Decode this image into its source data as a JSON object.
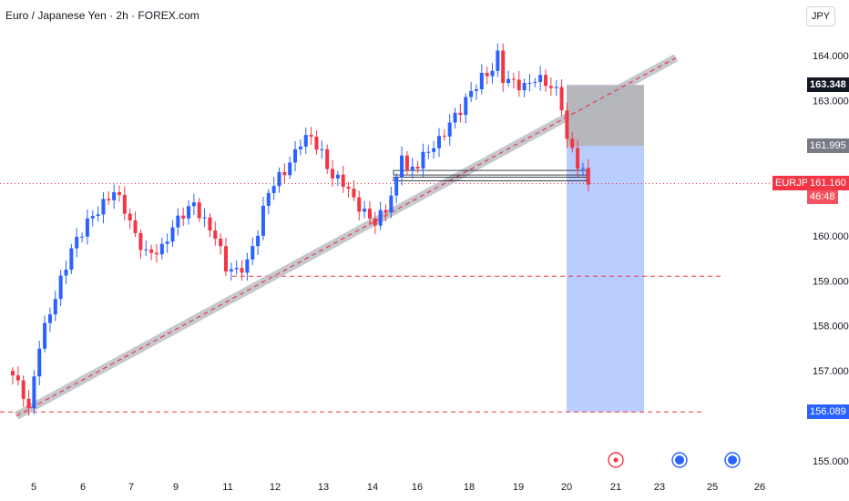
{
  "header": {
    "title": "Euro / Japanese Yen · 2h · FOREX.com",
    "currency_button": "JPY"
  },
  "colors": {
    "up": "#2962ff",
    "down": "#f23645",
    "trendline": "#f23645",
    "channel": "#b2b5be",
    "stop_zone": "#787b86",
    "target_zone": "#2962ff",
    "current_price": "#f23645"
  },
  "price_labels": {
    "stop": "163.348",
    "entry": "161.995",
    "current_symbol": "EURJPY",
    "current_price": "161.160",
    "countdown": "46:48",
    "target": "156.089"
  },
  "event_markers": [
    {
      "type": "economic-event",
      "color": "#f23645"
    },
    {
      "type": "economic-event",
      "color": "#2962ff"
    },
    {
      "type": "economic-event",
      "color": "#2962ff"
    }
  ],
  "chart_data": {
    "type": "candlestick",
    "symbol": "EURJPY",
    "timeframe": "2h",
    "source": "FOREX.com",
    "y_axis": {
      "range": [
        154.7,
        165.0
      ],
      "ticks": [
        "164.000",
        "163.000",
        "160.000",
        "159.000",
        "158.000",
        "157.000",
        "155.000"
      ]
    },
    "x_axis": {
      "ticks": [
        "5",
        "6",
        "7",
        "9",
        "11",
        "12",
        "13",
        "14",
        "16",
        "18",
        "19",
        "20",
        "21",
        "23",
        "25",
        "26"
      ]
    },
    "close_path": [
      [
        0,
        156.9
      ],
      [
        2,
        156.5
      ],
      [
        3,
        156.1
      ],
      [
        5,
        157.6
      ],
      [
        7,
        158.3
      ],
      [
        9,
        159.0
      ],
      [
        11,
        159.7
      ],
      [
        14,
        160.3
      ],
      [
        17,
        160.7
      ],
      [
        19,
        161.0
      ],
      [
        21,
        160.6
      ],
      [
        23,
        160.0
      ],
      [
        25,
        159.6
      ],
      [
        28,
        159.7
      ],
      [
        30,
        160.2
      ],
      [
        32,
        160.5
      ],
      [
        34,
        160.7
      ],
      [
        36,
        160.3
      ],
      [
        38,
        160.0
      ],
      [
        40,
        159.3
      ],
      [
        42,
        159.2
      ],
      [
        44,
        159.4
      ],
      [
        46,
        160.1
      ],
      [
        48,
        161.0
      ],
      [
        50,
        161.3
      ],
      [
        52,
        161.6
      ],
      [
        54,
        162.1
      ],
      [
        56,
        162.2
      ],
      [
        58,
        161.8
      ],
      [
        60,
        161.3
      ],
      [
        62,
        161.2
      ],
      [
        64,
        160.8
      ],
      [
        66,
        160.5
      ],
      [
        68,
        160.3
      ],
      [
        70,
        160.6
      ],
      [
        72,
        161.2
      ],
      [
        73,
        161.9
      ],
      [
        74,
        161.4
      ],
      [
        76,
        161.6
      ],
      [
        78,
        161.9
      ],
      [
        80,
        162.1
      ],
      [
        82,
        162.5
      ],
      [
        84,
        162.8
      ],
      [
        86,
        163.2
      ],
      [
        88,
        163.5
      ],
      [
        90,
        163.7
      ],
      [
        91,
        164.0
      ],
      [
        92,
        163.5
      ],
      [
        94,
        163.4
      ],
      [
        96,
        163.3
      ],
      [
        98,
        163.5
      ],
      [
        100,
        163.4
      ],
      [
        102,
        163.2
      ],
      [
        103,
        162.9
      ],
      [
        104,
        162.1
      ],
      [
        105,
        161.9
      ],
      [
        106,
        161.6
      ],
      [
        107,
        161.4
      ],
      [
        108,
        161.16
      ]
    ],
    "trendline": {
      "from": [
        0,
        156.0
      ],
      "to": [
        122,
        163.5
      ],
      "style": "dashed",
      "channel": true
    },
    "horizontal_levels": [
      {
        "price": 161.16,
        "style": "dotted",
        "label": "161.160"
      },
      {
        "price": 159.1,
        "style": "dashed"
      },
      {
        "price": 156.089,
        "style": "dashed",
        "label": "156.089"
      }
    ],
    "support_zone": {
      "from_bar": 72,
      "to_bar": 108,
      "low": 161.3,
      "high": 161.45
    },
    "position": {
      "type": "short",
      "stop": 163.348,
      "entry": 161.995,
      "target": 156.089,
      "from_bar": 104,
      "to_bar": 118
    },
    "grid": false,
    "legend": "none"
  }
}
